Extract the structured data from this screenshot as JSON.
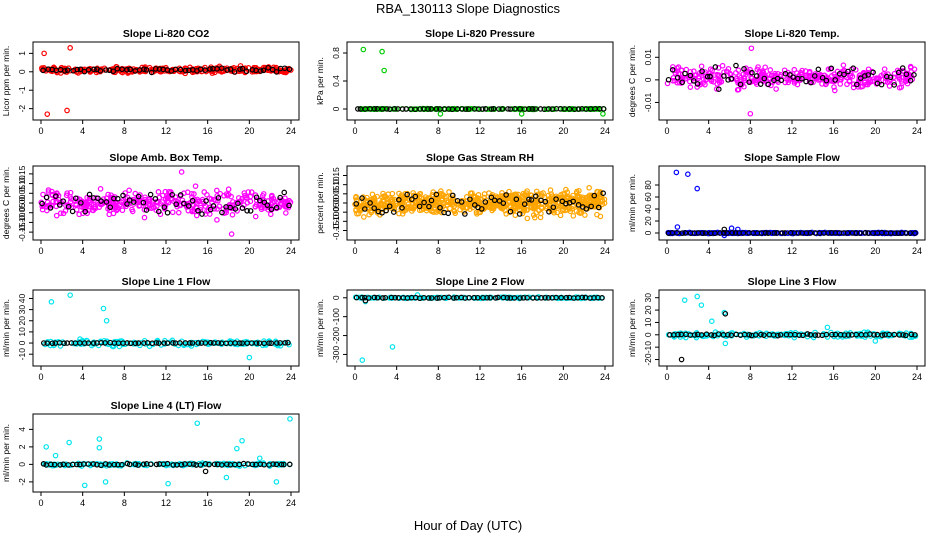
{
  "page": {
    "title": "RBA_130113  Slope Diagnostics",
    "x_axis_title": "Hour of Day (UTC)"
  },
  "chart_data": [
    {
      "type": "scatter",
      "title": "Slope Li-820 CO2",
      "ylabel": "Licor ppm per min.",
      "xlim": [
        0,
        24
      ],
      "ylim": [
        -2.4,
        1.4
      ],
      "xticks": [
        0,
        4,
        8,
        12,
        16,
        20,
        24
      ],
      "yticks": [
        -2,
        -1,
        0,
        1
      ],
      "grid": false,
      "series": [
        {
          "color": "#ff0000",
          "baseline": 0.1,
          "spread": 0.15,
          "count": 300,
          "outliers": [
            [
              0.6,
              -2.3
            ],
            [
              2.5,
              -2.1
            ],
            [
              2.8,
              1.3
            ],
            [
              0.3,
              1.0
            ]
          ]
        },
        {
          "color": "#000000",
          "baseline": 0.1,
          "spread": 0.1,
          "count": 60,
          "outliers": []
        }
      ]
    },
    {
      "type": "scatter",
      "title": "Slope Li-820 Pressure",
      "ylabel": "kPa per min.",
      "xlim": [
        0,
        24
      ],
      "ylim": [
        -0.1,
        0.9
      ],
      "xticks": [
        0,
        4,
        8,
        12,
        16,
        20,
        24
      ],
      "yticks": [
        0.0,
        0.4,
        0.8
      ],
      "grid": false,
      "series": [
        {
          "color": "#00cc00",
          "baseline": 0.0,
          "spread": 0.005,
          "count": 150,
          "outliers": [
            [
              0.8,
              0.85
            ],
            [
              2.6,
              0.82
            ],
            [
              2.8,
              0.55
            ],
            [
              8.2,
              -0.07
            ],
            [
              16.0,
              -0.07
            ],
            [
              23.8,
              -0.07
            ]
          ]
        },
        {
          "color": "#000000",
          "baseline": 0.0,
          "spread": 0.003,
          "count": 60,
          "outliers": []
        }
      ]
    },
    {
      "type": "scatter",
      "title": "Slope Li-820 Temp.",
      "ylabel": "degrees C per min.",
      "xlim": [
        0,
        24
      ],
      "ylim": [
        -0.016,
        0.015
      ],
      "xticks": [
        0,
        4,
        8,
        12,
        16,
        20,
        24
      ],
      "yticks": [
        -0.01,
        0.0,
        0.01
      ],
      "ytick_labels": [
        "-0.01",
        "0",
        "0.01"
      ],
      "grid": false,
      "series": [
        {
          "color": "#ff00ff",
          "baseline": 0.001,
          "spread": 0.004,
          "count": 350,
          "outliers": [
            [
              8.0,
              -0.015
            ],
            [
              8.1,
              0.014
            ]
          ]
        },
        {
          "color": "#000000",
          "baseline": 0.001,
          "spread": 0.004,
          "count": 60,
          "outliers": []
        }
      ]
    },
    {
      "type": "scatter",
      "title": "Slope Amb. Box Temp.",
      "ylabel": "degrees C per min.",
      "xlim": [
        0,
        24
      ],
      "ylim": [
        -0.17,
        0.17
      ],
      "xticks": [
        0,
        4,
        8,
        12,
        16,
        20,
        24
      ],
      "yticks": [
        -0.15,
        -0.1,
        -0.05,
        0.0,
        0.05,
        0.1,
        0.15
      ],
      "ytick_labels": [
        "-0.15",
        "-0.10",
        "-0.05",
        "0.00",
        "0.05",
        "0.10",
        "0.15"
      ],
      "grid": false,
      "series": [
        {
          "color": "#ff00ff",
          "baseline": 0.0,
          "spread": 0.055,
          "count": 380,
          "outliers": [
            [
              13.5,
              0.16
            ],
            [
              18.3,
              -0.16
            ]
          ]
        },
        {
          "color": "#000000",
          "baseline": 0.0,
          "spread": 0.05,
          "count": 60,
          "outliers": []
        }
      ]
    },
    {
      "type": "scatter",
      "title": "Slope Gas Stream RH",
      "ylabel": "percent per min.",
      "xlim": [
        0,
        24
      ],
      "ylim": [
        -0.18,
        0.18
      ],
      "xticks": [
        0,
        4,
        8,
        12,
        16,
        20,
        24
      ],
      "yticks": [
        -0.15,
        -0.1,
        -0.05,
        0.0,
        0.05,
        0.1,
        0.15
      ],
      "ytick_labels": [
        "-0.15",
        "-0.10",
        "-0.05",
        "0.00",
        "0.05",
        "0.10",
        "0.15"
      ],
      "grid": false,
      "series": [
        {
          "color": "#ffa500",
          "baseline": 0.0,
          "spread": 0.055,
          "count": 700,
          "outliers": []
        },
        {
          "color": "#000000",
          "baseline": 0.0,
          "spread": 0.05,
          "count": 60,
          "outliers": []
        }
      ]
    },
    {
      "type": "scatter",
      "title": "Slope Sample Flow",
      "ylabel": "ml/min per min.",
      "xlim": [
        0,
        24
      ],
      "ylim": [
        -5,
        105
      ],
      "xticks": [
        0,
        4,
        8,
        12,
        16,
        20,
        24
      ],
      "yticks": [
        0,
        20,
        40,
        60,
        80
      ],
      "grid": false,
      "series": [
        {
          "color": "#0000ff",
          "baseline": 0.0,
          "spread": 0.8,
          "count": 250,
          "outliers": [
            [
              0.9,
              101
            ],
            [
              2.0,
              98
            ],
            [
              2.9,
              74
            ],
            [
              1.0,
              10
            ],
            [
              5.5,
              -4
            ],
            [
              6.2,
              8
            ],
            [
              6.8,
              6
            ]
          ]
        },
        {
          "color": "#000000",
          "baseline": 0.0,
          "spread": 0.4,
          "count": 60,
          "outliers": [
            [
              5.5,
              6
            ]
          ]
        }
      ]
    },
    {
      "type": "scatter",
      "title": "Slope Line 1 Flow",
      "ylabel": "ml/min per min.",
      "xlim": [
        0,
        24
      ],
      "ylim": [
        -17,
        44
      ],
      "xticks": [
        0,
        4,
        8,
        12,
        16,
        20,
        24
      ],
      "yticks": [
        -10,
        0,
        10,
        20,
        30,
        40
      ],
      "grid": false,
      "series": [
        {
          "color": "#00e5ee",
          "baseline": 0.0,
          "spread": 2.5,
          "count": 160,
          "outliers": [
            [
              1.0,
              37
            ],
            [
              2.8,
              43
            ],
            [
              6.0,
              31
            ],
            [
              6.3,
              20
            ],
            [
              20.0,
              -13
            ]
          ]
        },
        {
          "color": "#000000",
          "baseline": 0.0,
          "spread": 0.3,
          "count": 60,
          "outliers": []
        }
      ]
    },
    {
      "type": "scatter",
      "title": "Slope Line 2 Flow",
      "ylabel": "ml/min per min.",
      "xlim": [
        0,
        24
      ],
      "ylim": [
        -340,
        20
      ],
      "xticks": [
        0,
        4,
        8,
        12,
        16,
        20,
        24
      ],
      "yticks": [
        -300,
        -200,
        -100,
        0
      ],
      "grid": false,
      "series": [
        {
          "color": "#00e5ee",
          "baseline": 0.0,
          "spread": 3,
          "count": 160,
          "outliers": [
            [
              0.7,
              -330
            ],
            [
              3.6,
              -260
            ],
            [
              1.0,
              -20
            ],
            [
              6.0,
              15
            ]
          ]
        },
        {
          "color": "#000000",
          "baseline": 0.0,
          "spread": 2,
          "count": 60,
          "outliers": [
            [
              1.0,
              -15
            ]
          ]
        }
      ]
    },
    {
      "type": "scatter",
      "title": "Slope Line 3 Flow",
      "ylabel": "ml/min per min.",
      "xlim": [
        0,
        24
      ],
      "ylim": [
        -22,
        33
      ],
      "xticks": [
        0,
        4,
        8,
        12,
        16,
        20,
        24
      ],
      "yticks": [
        -20,
        -10,
        0,
        10,
        20,
        30
      ],
      "grid": false,
      "series": [
        {
          "color": "#00e5ee",
          "baseline": 0.0,
          "spread": 2.0,
          "count": 180,
          "outliers": [
            [
              1.7,
              28
            ],
            [
              2.9,
              31
            ],
            [
              3.3,
              24
            ],
            [
              4.3,
              11
            ],
            [
              5.5,
              18
            ],
            [
              5.6,
              -7
            ],
            [
              15.4,
              6
            ],
            [
              20.0,
              -5
            ]
          ]
        },
        {
          "color": "#000000",
          "baseline": 0.0,
          "spread": 0.5,
          "count": 60,
          "outliers": [
            [
              1.4,
              -20
            ],
            [
              5.6,
              17
            ]
          ]
        }
      ]
    },
    {
      "type": "scatter",
      "title": "Slope Line 4 (LT) Flow",
      "ylabel": "ml/min per min.",
      "xlim": [
        0,
        24
      ],
      "ylim": [
        -2.7,
        5.3
      ],
      "xticks": [
        0,
        4,
        8,
        12,
        16,
        20,
        24
      ],
      "yticks": [
        -2,
        0,
        2,
        4
      ],
      "grid": false,
      "series": [
        {
          "color": "#00e5ee",
          "baseline": 0.0,
          "spread": 0.15,
          "count": 160,
          "outliers": [
            [
              0.5,
              2.0
            ],
            [
              1.4,
              1.0
            ],
            [
              2.7,
              2.5
            ],
            [
              5.6,
              2.9
            ],
            [
              5.6,
              1.9
            ],
            [
              4.2,
              -2.4
            ],
            [
              6.2,
              -2.0
            ],
            [
              12.2,
              -2.2
            ],
            [
              15.0,
              4.7
            ],
            [
              18.8,
              1.8
            ],
            [
              19.3,
              2.7
            ],
            [
              22.6,
              -2.0
            ],
            [
              23.9,
              5.2
            ],
            [
              17.8,
              -1.5
            ],
            [
              21.0,
              0.7
            ]
          ]
        },
        {
          "color": "#000000",
          "baseline": 0.0,
          "spread": 0.08,
          "count": 60,
          "outliers": [
            [
              15.8,
              -0.8
            ]
          ]
        }
      ]
    }
  ]
}
